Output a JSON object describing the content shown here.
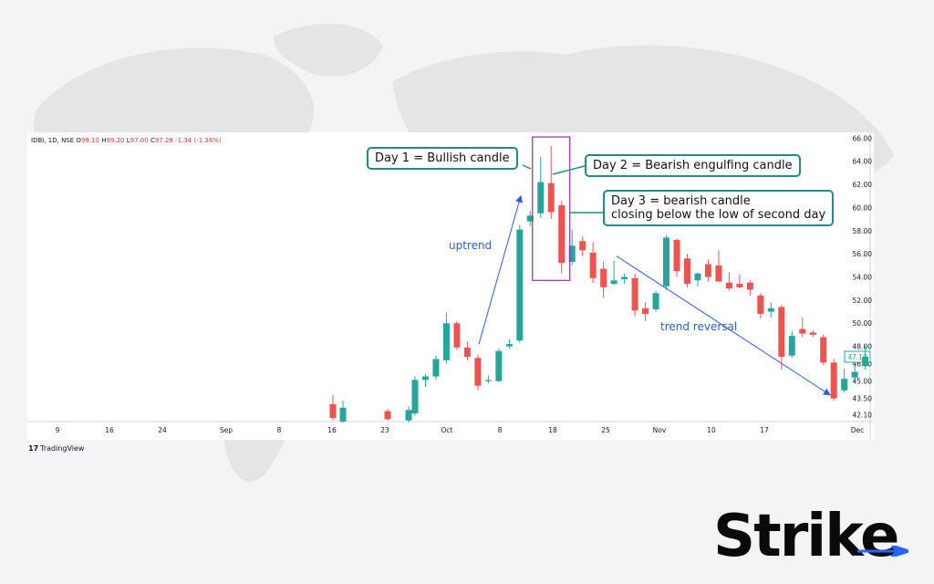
{
  "ticker": {
    "symbol": "IDBI, 1D, NSE",
    "o_label": "O",
    "o": "99.10",
    "h_label": "H",
    "h": "99.20",
    "l_label": "L",
    "l": "97.00",
    "c_label": "C",
    "c": "97.28",
    "change": "-1.34 (-1.36%)"
  },
  "callouts": {
    "day1": "Day 1 = Bullish candle",
    "day2": "Day 2 = Bearish engulfing candle",
    "day3_line1": "Day 3 = bearish candle",
    "day3_line2": "closing below the low of second day"
  },
  "annotations": {
    "uptrend": "uptrend",
    "reversal": "trend reversal"
  },
  "branding": {
    "tradingview": "TradingView",
    "tradingview_mark": "17",
    "strike": "Stri",
    "strike_suffix": "ke"
  },
  "colors": {
    "bull": "#26a69a",
    "bear": "#ef5350",
    "arrow": "#2d5be3",
    "callout_border": "#1f8a8a",
    "highlight_box": "#9c27b0",
    "last_price": "#26a69a"
  },
  "chart_data": {
    "type": "candlestick",
    "price_ticks": [
      "66.00",
      "64.00",
      "62.00",
      "60.00",
      "58.00",
      "56.00",
      "54.00",
      "52.00",
      "50.00",
      "48.00",
      "46.50",
      "45.00",
      "43.50",
      "42.10"
    ],
    "last_price_label": "47.10",
    "x_tick_labels": [
      "9",
      "16",
      "24",
      "Sep",
      "8",
      "16",
      "23",
      "Oct",
      "8",
      "18",
      "25",
      "Nov",
      "10",
      "17",
      "Dec"
    ],
    "ylim": [
      41.5,
      66.5
    ],
    "candles": [
      {
        "o": 43.0,
        "h": 43.8,
        "l": 41.6,
        "c": 41.8
      },
      {
        "o": 41.5,
        "h": 43.3,
        "l": 41.4,
        "c": 42.7
      },
      {
        "o": 42.4,
        "h": 42.6,
        "l": 41.6,
        "c": 41.7
      },
      {
        "o": 41.6,
        "h": 42.8,
        "l": 41.4,
        "c": 42.5
      },
      {
        "o": 42.2,
        "h": 45.4,
        "l": 42.0,
        "c": 45.1
      },
      {
        "o": 45.1,
        "h": 45.6,
        "l": 44.5,
        "c": 45.4
      },
      {
        "o": 45.4,
        "h": 47.2,
        "l": 45.1,
        "c": 46.9
      },
      {
        "o": 46.8,
        "h": 50.9,
        "l": 46.5,
        "c": 50.0
      },
      {
        "o": 50.0,
        "h": 50.2,
        "l": 47.7,
        "c": 47.9
      },
      {
        "o": 47.9,
        "h": 48.4,
        "l": 46.8,
        "c": 47.1
      },
      {
        "o": 47.0,
        "h": 47.3,
        "l": 44.2,
        "c": 44.6
      },
      {
        "o": 45.0,
        "h": 45.5,
        "l": 44.8,
        "c": 45.1
      },
      {
        "o": 45.0,
        "h": 47.8,
        "l": 44.9,
        "c": 47.6
      },
      {
        "o": 48.0,
        "h": 48.6,
        "l": 47.8,
        "c": 48.2
      },
      {
        "o": 48.5,
        "h": 58.5,
        "l": 48.3,
        "c": 58.1
      },
      {
        "o": 58.8,
        "h": 59.7,
        "l": 58.4,
        "c": 59.3
      },
      {
        "o": 59.5,
        "h": 64.4,
        "l": 59.1,
        "c": 62.2
      },
      {
        "o": 62.1,
        "h": 65.3,
        "l": 59.0,
        "c": 59.6
      },
      {
        "o": 60.2,
        "h": 60.6,
        "l": 54.3,
        "c": 55.2
      },
      {
        "o": 55.3,
        "h": 58.1,
        "l": 55.0,
        "c": 56.7
      },
      {
        "o": 57.1,
        "h": 57.5,
        "l": 55.8,
        "c": 56.3
      },
      {
        "o": 56.1,
        "h": 57.0,
        "l": 53.5,
        "c": 53.9
      },
      {
        "o": 54.7,
        "h": 55.3,
        "l": 52.2,
        "c": 53.1
      },
      {
        "o": 53.4,
        "h": 55.4,
        "l": 53.3,
        "c": 53.7
      },
      {
        "o": 53.8,
        "h": 54.3,
        "l": 53.4,
        "c": 54.0
      },
      {
        "o": 53.9,
        "h": 54.3,
        "l": 50.6,
        "c": 51.1
      },
      {
        "o": 51.3,
        "h": 51.8,
        "l": 50.2,
        "c": 50.8
      },
      {
        "o": 51.2,
        "h": 52.8,
        "l": 51.0,
        "c": 52.6
      },
      {
        "o": 53.2,
        "h": 57.6,
        "l": 52.9,
        "c": 57.4
      },
      {
        "o": 57.2,
        "h": 57.3,
        "l": 54.0,
        "c": 54.5
      },
      {
        "o": 55.6,
        "h": 56.0,
        "l": 53.1,
        "c": 53.4
      },
      {
        "o": 53.7,
        "h": 54.4,
        "l": 53.2,
        "c": 54.3
      },
      {
        "o": 55.1,
        "h": 55.5,
        "l": 53.6,
        "c": 54.0
      },
      {
        "o": 55.0,
        "h": 56.3,
        "l": 53.6,
        "c": 53.6
      },
      {
        "o": 53.5,
        "h": 54.4,
        "l": 52.8,
        "c": 53.0
      },
      {
        "o": 53.4,
        "h": 54.2,
        "l": 53.0,
        "c": 53.1
      },
      {
        "o": 53.5,
        "h": 53.7,
        "l": 52.4,
        "c": 52.9
      },
      {
        "o": 52.4,
        "h": 52.6,
        "l": 50.4,
        "c": 50.8
      },
      {
        "o": 51.0,
        "h": 51.8,
        "l": 50.5,
        "c": 51.3
      },
      {
        "o": 51.4,
        "h": 51.6,
        "l": 46.0,
        "c": 47.1
      },
      {
        "o": 47.2,
        "h": 49.3,
        "l": 47.0,
        "c": 48.9
      },
      {
        "o": 49.5,
        "h": 50.5,
        "l": 48.8,
        "c": 49.1
      },
      {
        "o": 49.2,
        "h": 49.4,
        "l": 48.8,
        "c": 49.0
      },
      {
        "o": 48.8,
        "h": 49.0,
        "l": 46.4,
        "c": 46.6
      },
      {
        "o": 46.6,
        "h": 46.9,
        "l": 43.3,
        "c": 43.5
      },
      {
        "o": 44.2,
        "h": 46.1,
        "l": 44.0,
        "c": 45.2
      },
      {
        "o": 45.3,
        "h": 46.3,
        "l": 45.0,
        "c": 45.8
      },
      {
        "o": 46.3,
        "h": 48.1,
        "l": 46.0,
        "c": 47.1
      }
    ]
  }
}
